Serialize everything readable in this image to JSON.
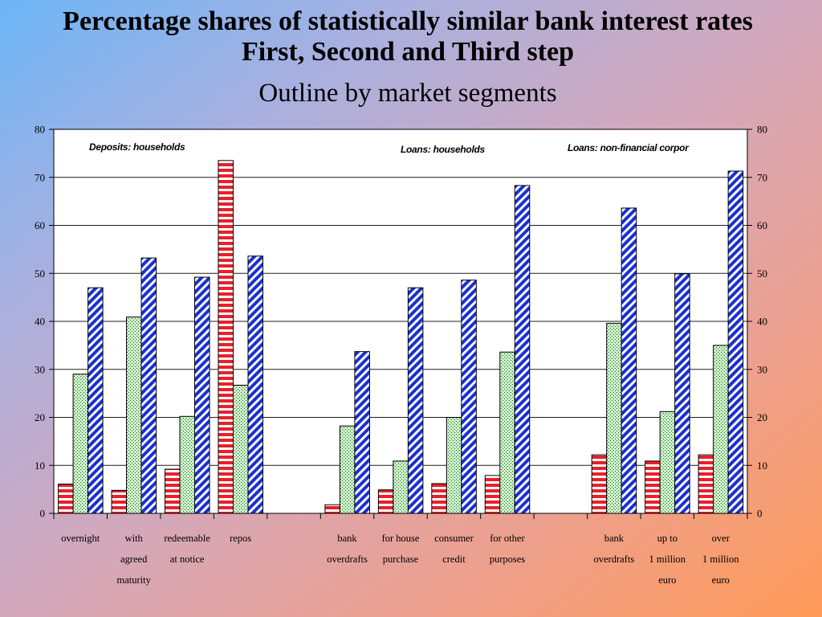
{
  "chart_data": {
    "type": "bar",
    "title": [
      "Percentage shares of statistically similar bank interest rates",
      "First, Second and Third step"
    ],
    "subtitle": "Outline by market segments",
    "annotations": [
      "Deposits: households",
      "Loans: households",
      "Loans: non-financial corpor"
    ],
    "categories": [
      [
        "overnight"
      ],
      [
        "with",
        "agreed",
        "maturity"
      ],
      [
        "redeemable",
        "at notice"
      ],
      [
        "repos"
      ],
      [],
      [
        "bank",
        "overdrafts"
      ],
      [
        "for house",
        "purchase"
      ],
      [
        "consumer",
        "credit"
      ],
      [
        "for other",
        "purposes"
      ],
      [],
      [
        "bank",
        "overdrafts"
      ],
      [
        "up to",
        "1 million",
        "euro"
      ],
      [
        "over",
        "1 million",
        "euro"
      ]
    ],
    "series": [
      {
        "color": "#e8202a",
        "values": [
          6.1,
          4.8,
          9.2,
          73.5,
          null,
          1.8,
          4.9,
          6.2,
          7.9,
          null,
          12.2,
          10.9,
          12.2
        ]
      },
      {
        "color": "#c8f5c6",
        "values": [
          29.0,
          40.9,
          20.2,
          26.7,
          null,
          18.2,
          10.9,
          20.0,
          33.6,
          null,
          39.6,
          21.2,
          35.0
        ]
      },
      {
        "color": "#1c2fd4",
        "values": [
          47.0,
          53.2,
          49.2,
          53.6,
          null,
          33.7,
          47.0,
          48.6,
          68.3,
          null,
          63.6,
          49.9,
          71.3
        ]
      }
    ],
    "ylim": [
      0,
      80
    ],
    "yticks": [
      0,
      10,
      20,
      30,
      40,
      50,
      60,
      70,
      80
    ],
    "mirror_y_axis_right": true,
    "grid": true,
    "legend": false
  }
}
